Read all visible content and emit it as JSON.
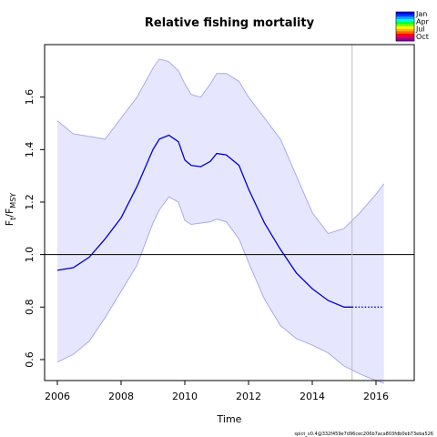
{
  "chart_data": {
    "type": "line",
    "title": "Relative fishing mortality",
    "xlabel": "Time",
    "ylabel": {
      "main": "F",
      "sub1": "t",
      "sep": "/F",
      "sub2": "MSY"
    },
    "xlim": [
      2005.6,
      2017.2
    ],
    "ylim": [
      0.52,
      1.8
    ],
    "xticks": [
      2006,
      2008,
      2010,
      2012,
      2014,
      2016
    ],
    "yticks": [
      0.6,
      0.8,
      1.0,
      1.2,
      1.4,
      1.6
    ],
    "xtick_labels": [
      "2006",
      "2008",
      "2010",
      "2012",
      "2014",
      "2016"
    ],
    "ytick_labels": [
      "0.6",
      "0.8",
      "1.0",
      "1.2",
      "1.4",
      "1.6"
    ],
    "reference_line_y": 1.0,
    "vertical_line_x": 2015.25,
    "colors": {
      "line": "#0000cc",
      "band_fill": "#e6e6ff",
      "band_edge": "#aaaaee",
      "vline": "#bbbbbb"
    },
    "series": [
      {
        "role": "estimate",
        "style": "solid",
        "x": [
          2006.0,
          2006.5,
          2007.0,
          2007.5,
          2008.0,
          2008.5,
          2009.0,
          2009.2,
          2009.5,
          2009.8,
          2010.0,
          2010.2,
          2010.5,
          2010.8,
          2011.0,
          2011.3,
          2011.7,
          2012.0,
          2012.5,
          2013.0,
          2013.5,
          2014.0,
          2014.5,
          2015.0,
          2015.25
        ],
        "y": [
          0.94,
          0.95,
          0.99,
          1.06,
          1.14,
          1.26,
          1.4,
          1.44,
          1.455,
          1.43,
          1.36,
          1.34,
          1.335,
          1.355,
          1.385,
          1.38,
          1.34,
          1.25,
          1.12,
          1.02,
          0.93,
          0.87,
          0.825,
          0.8,
          0.8
        ]
      },
      {
        "role": "forecast",
        "style": "dotted",
        "x": [
          2015.25,
          2015.5,
          2016.0,
          2016.25
        ],
        "y": [
          0.8,
          0.8,
          0.8,
          0.8
        ]
      },
      {
        "role": "upper",
        "style": "band",
        "x": [
          2006.0,
          2006.5,
          2007.0,
          2007.5,
          2008.0,
          2008.5,
          2009.0,
          2009.2,
          2009.5,
          2009.8,
          2010.0,
          2010.2,
          2010.5,
          2010.8,
          2011.0,
          2011.3,
          2011.7,
          2012.0,
          2012.5,
          2013.0,
          2013.5,
          2014.0,
          2014.5,
          2015.0,
          2015.5,
          2016.0,
          2016.25
        ],
        "y": [
          1.51,
          1.46,
          1.45,
          1.44,
          1.52,
          1.6,
          1.71,
          1.745,
          1.735,
          1.7,
          1.65,
          1.61,
          1.6,
          1.65,
          1.69,
          1.69,
          1.66,
          1.6,
          1.52,
          1.44,
          1.3,
          1.16,
          1.08,
          1.1,
          1.16,
          1.23,
          1.27
        ]
      },
      {
        "role": "lower",
        "style": "band",
        "x": [
          2006.0,
          2006.5,
          2007.0,
          2007.5,
          2008.0,
          2008.5,
          2009.0,
          2009.2,
          2009.5,
          2009.8,
          2010.0,
          2010.2,
          2010.5,
          2010.8,
          2011.0,
          2011.3,
          2011.7,
          2012.0,
          2012.5,
          2013.0,
          2013.5,
          2014.0,
          2014.5,
          2015.0,
          2015.5,
          2016.0,
          2016.25
        ],
        "y": [
          0.59,
          0.62,
          0.67,
          0.76,
          0.86,
          0.96,
          1.12,
          1.17,
          1.22,
          1.2,
          1.13,
          1.115,
          1.12,
          1.125,
          1.135,
          1.125,
          1.06,
          0.97,
          0.83,
          0.73,
          0.68,
          0.655,
          0.625,
          0.575,
          0.545,
          0.52,
          0.51
        ]
      }
    ],
    "legend": {
      "placement": "top-right",
      "labels": [
        "Jan",
        "Apr",
        "Jul",
        "Oct"
      ],
      "colors": [
        "#0000ff",
        "#0040ff",
        "#00b0ff",
        "#00ffe0",
        "#00ff40",
        "#80ff00",
        "#ffff00",
        "#ffb000",
        "#ff6000",
        "#ff0000",
        "#d0006a",
        "#8000a0"
      ]
    }
  },
  "footer": "spict_v0.4@332f459e7d96cec206b7aca803fdb0eb73eba526"
}
